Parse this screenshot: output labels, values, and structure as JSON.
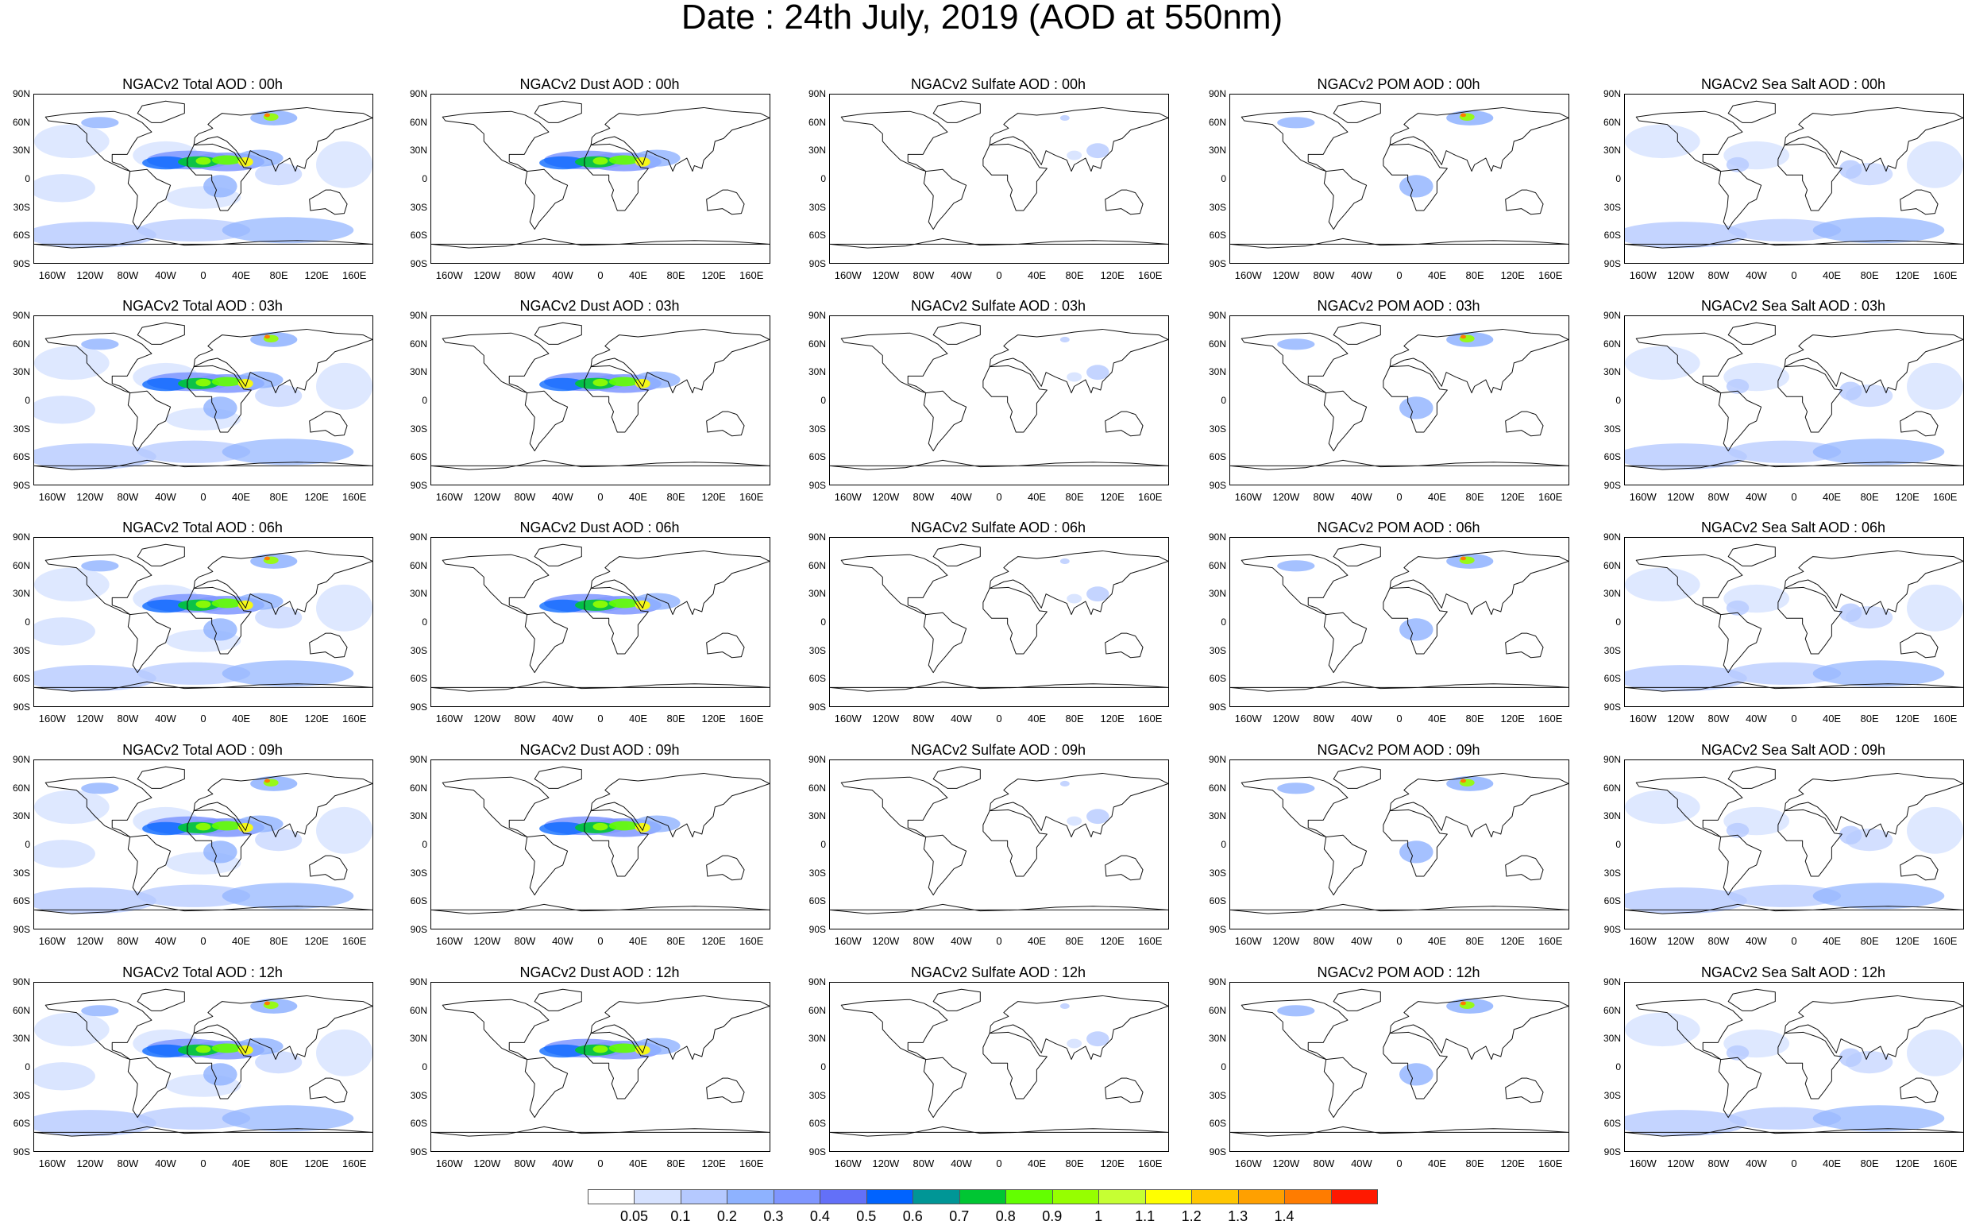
{
  "title": "Date : 24th July, 2019 (AOD at 550nm)",
  "panels": [
    [
      "NGACv2 Total AOD : 00h",
      "NGACv2 Dust AOD : 00h",
      "NGACv2 Sulfate AOD : 00h",
      "NGACv2 POM AOD : 00h",
      "NGACv2 Sea Salt AOD : 00h"
    ],
    [
      "NGACv2 Total AOD : 03h",
      "NGACv2 Dust AOD : 03h",
      "NGACv2 Sulfate AOD : 03h",
      "NGACv2 POM AOD : 03h",
      "NGACv2 Sea Salt AOD : 03h"
    ],
    [
      "NGACv2 Total AOD : 06h",
      "NGACv2 Dust AOD : 06h",
      "NGACv2 Sulfate AOD : 06h",
      "NGACv2 POM AOD : 06h",
      "NGACv2 Sea Salt AOD : 06h"
    ],
    [
      "NGACv2 Total AOD : 09h",
      "NGACv2 Dust AOD : 09h",
      "NGACv2 Sulfate AOD : 09h",
      "NGACv2 POM AOD : 09h",
      "NGACv2 Sea Salt  AOD : 09h"
    ],
    [
      "NGACv2 Total AOD  : 12h",
      "NGACv2 Dust AOD : 12h",
      "NGACv2 Sulfate AOD : 12h",
      "NGACv2 POM  AOD : 12h",
      "NGACv2 Sea Salt AOD : 12h"
    ]
  ],
  "lat_labels": [
    "90N",
    "60N",
    "30N",
    "0",
    "30S",
    "60S",
    "90S"
  ],
  "lon_labels": [
    "160W",
    "120W",
    "80W",
    "40W",
    "0",
    "40E",
    "80E",
    "120E",
    "160E"
  ],
  "lat_values": [
    90,
    60,
    30,
    0,
    -30,
    -60,
    -90
  ],
  "lon_values": [
    -160,
    -120,
    -80,
    -40,
    0,
    40,
    80,
    120,
    160
  ],
  "colorbar": {
    "labels": [
      "0.05",
      "0.1",
      "0.2",
      "0.3",
      "0.4",
      "0.5",
      "0.6",
      "0.7",
      "0.8",
      "0.9",
      "1",
      "1.1",
      "1.2",
      "1.3",
      "1.4"
    ],
    "colors": [
      "#ffffff",
      "#d6e2ff",
      "#b5c9ff",
      "#8eb2ff",
      "#7f96ff",
      "#6370f8",
      "#0063ff",
      "#009696",
      "#00c633",
      "#63ff00",
      "#96ff00",
      "#c6ff33",
      "#ffff00",
      "#ffc600",
      "#ffa000",
      "#ff7c00",
      "#ff1900"
    ]
  }
}
